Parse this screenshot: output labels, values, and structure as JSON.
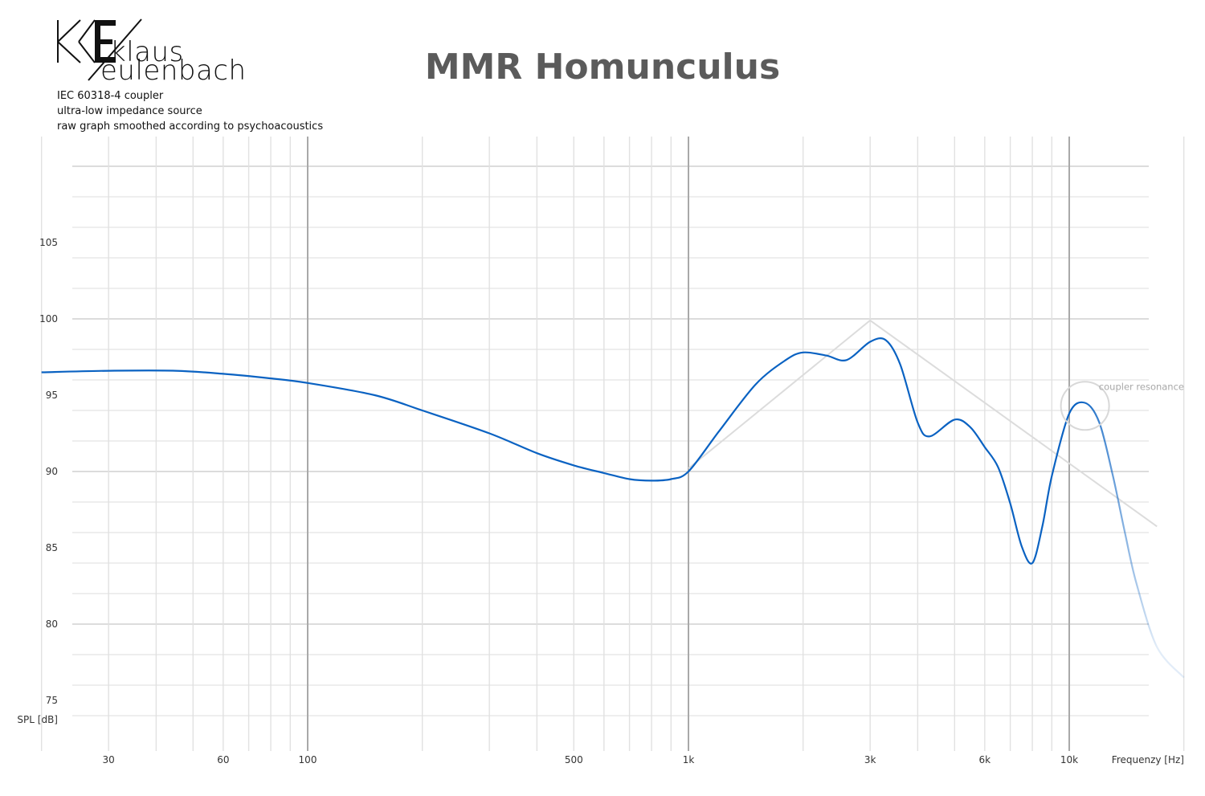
{
  "brand": {
    "line1": "klaus",
    "line2": "eulenbach"
  },
  "meta": [
    "IEC 60318-4 coupler",
    "ultra-low impedance source",
    "raw graph smoothed according to psychoacoustics"
  ],
  "chart_data": {
    "type": "line",
    "title": "MMR Homunculus",
    "xlabel": "Frequenzy [Hz]",
    "ylabel": "SPL [dB]",
    "x_scale": "log",
    "xlim": [
      20,
      20000
    ],
    "ylim": [
      73,
      110
    ],
    "x_ticks": [
      {
        "value": 30,
        "label": "30"
      },
      {
        "value": 60,
        "label": "60"
      },
      {
        "value": 100,
        "label": "100"
      },
      {
        "value": 500,
        "label": "500"
      },
      {
        "value": 1000,
        "label": "1k"
      },
      {
        "value": 3000,
        "label": "3k"
      },
      {
        "value": 6000,
        "label": "6k"
      },
      {
        "value": 10000,
        "label": "10k"
      }
    ],
    "y_ticks": [
      75,
      80,
      85,
      90,
      95,
      100,
      105
    ],
    "grid": true,
    "annotation": {
      "text": "coupler resonance",
      "x": 11000,
      "y": 94.3
    },
    "series": [
      {
        "color": "#0a62c2",
        "x": [
          20,
          30,
          45,
          60,
          80,
          100,
          150,
          200,
          300,
          400,
          500,
          600,
          700,
          800,
          900,
          1000,
          1200,
          1500,
          1800,
          2000,
          2300,
          2600,
          3000,
          3300,
          3600,
          4000,
          4300,
          5000,
          5500,
          6000,
          6500,
          7000,
          7500,
          8000,
          8500,
          9000,
          10000,
          11000,
          12000,
          13000,
          14000,
          15000,
          17000,
          20000
        ],
        "y": [
          96.5,
          96.6,
          96.6,
          96.4,
          96.1,
          95.8,
          95.0,
          94.0,
          92.5,
          91.2,
          90.4,
          89.9,
          89.5,
          89.4,
          89.5,
          90.0,
          92.6,
          95.7,
          97.3,
          97.8,
          97.6,
          97.3,
          98.5,
          98.6,
          97.0,
          93.2,
          92.3,
          93.4,
          92.9,
          91.6,
          90.3,
          87.9,
          85.1,
          84.0,
          86.4,
          89.7,
          93.8,
          94.5,
          93.2,
          89.8,
          86.0,
          82.7,
          78.5,
          76.5
        ]
      },
      {
        "color": "#dcdcdc",
        "x": [
          1000,
          3000,
          17000
        ],
        "y": [
          90.2,
          99.9,
          86.4
        ]
      }
    ]
  }
}
